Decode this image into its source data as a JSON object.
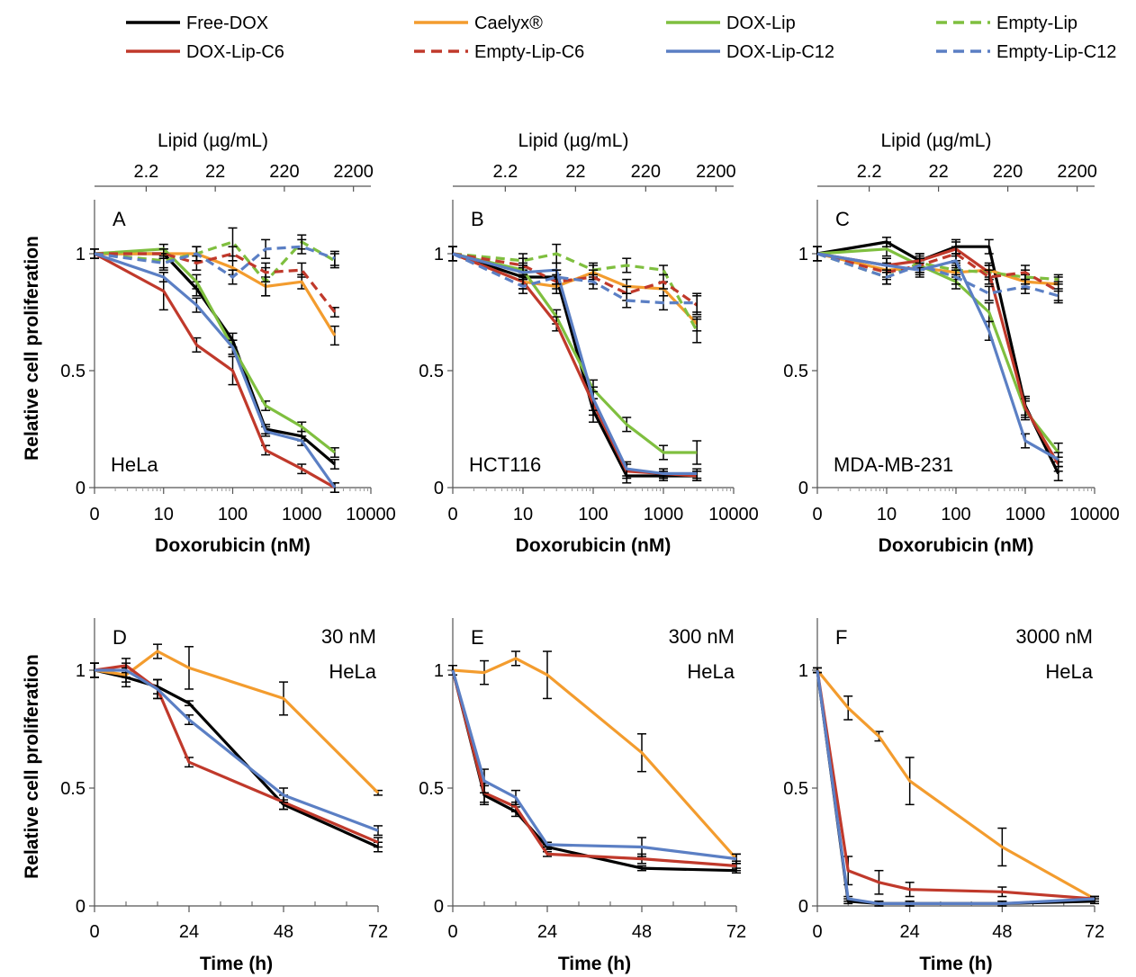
{
  "legend": [
    {
      "label": "Free-DOX",
      "color": "#000000",
      "dash": false
    },
    {
      "label": "Caelyx®",
      "color": "#F39C2E",
      "dash": false
    },
    {
      "label": "DOX-Lip",
      "color": "#7FBF3F",
      "dash": false
    },
    {
      "label": "Empty-Lip",
      "color": "#7FBF3F",
      "dash": true
    },
    {
      "label": "DOX-Lip-C6",
      "color": "#C0392B",
      "dash": false
    },
    {
      "label": "Empty-Lip-C6",
      "color": "#C0392B",
      "dash": true
    },
    {
      "label": "DOX-Lip-C12",
      "color": "#5B7FC4",
      "dash": false
    },
    {
      "label": "Empty-Lip-C12",
      "color": "#5B7FC4",
      "dash": true
    }
  ],
  "chart_data": [
    {
      "panel": "A",
      "type": "line",
      "cell_line": "HeLa",
      "xlabel": "Doxorubicin (nM)",
      "top_xlabel": "Lipid (µg/mL)",
      "ylabel": "Relative cell proliferation",
      "x_scale": "log-with-zero",
      "xlim": [
        0,
        10000
      ],
      "ylim": [
        0,
        1.25
      ],
      "x_ticks": [
        "0",
        "10",
        "100",
        "1000",
        "10000"
      ],
      "top_ticks": [
        "2.2",
        "22",
        "220",
        "2200"
      ],
      "y_ticks": [
        "0",
        "0.5",
        "1"
      ],
      "x": [
        0,
        10,
        30,
        100,
        300,
        1000,
        3000
      ],
      "series": [
        {
          "name": "Free-DOX",
          "values": [
            1,
            1,
            0.85,
            0.63,
            0.25,
            0.22,
            0.1
          ],
          "err": [
            0.02,
            0.02,
            0.03,
            0.03,
            0.02,
            0.02,
            0.02
          ]
        },
        {
          "name": "Caelyx®",
          "values": [
            1,
            1,
            1,
            0.94,
            0.86,
            0.88,
            0.65
          ],
          "err": [
            0.02,
            0.02,
            0.03,
            0.03,
            0.04,
            0.03,
            0.04
          ]
        },
        {
          "name": "DOX-Lip",
          "values": [
            1,
            1.02,
            0.88,
            0.6,
            0.35,
            0.26,
            0.15
          ],
          "err": [
            0.02,
            0.02,
            0.03,
            0.03,
            0.02,
            0.02,
            0.02
          ]
        },
        {
          "name": "Empty-Lip",
          "values": [
            1,
            0.97,
            1,
            1.05,
            0.88,
            1.05,
            0.97
          ],
          "err": [
            0.02,
            0.03,
            0.03,
            0.06,
            0.06,
            0.03,
            0.03
          ]
        },
        {
          "name": "DOX-Lip-C6",
          "values": [
            1,
            0.84,
            0.61,
            0.5,
            0.16,
            0.08,
            0
          ],
          "err": [
            0.02,
            0.08,
            0.03,
            0.06,
            0.02,
            0.02,
            0.02
          ]
        },
        {
          "name": "Empty-Lip-C6",
          "values": [
            1,
            1,
            0.96,
            1,
            0.92,
            0.93,
            0.75
          ],
          "err": [
            0.02,
            0.02,
            0.03,
            0.03,
            0.04,
            0.03,
            0.02
          ]
        },
        {
          "name": "DOX-Lip-C12",
          "values": [
            1,
            0.9,
            0.78,
            0.6,
            0.24,
            0.2,
            0
          ],
          "err": [
            0.02,
            0.02,
            0.03,
            0.03,
            0.02,
            0.02,
            0.02
          ]
        },
        {
          "name": "Empty-Lip-C12",
          "values": [
            1,
            0.96,
            1,
            0.9,
            1.02,
            1.03,
            0.98
          ],
          "err": [
            0.02,
            0.03,
            0.03,
            0.03,
            0.04,
            0.03,
            0.03
          ]
        }
      ]
    },
    {
      "panel": "B",
      "type": "line",
      "cell_line": "HCT116",
      "xlabel": "Doxorubicin (nM)",
      "top_xlabel": "Lipid (µg/mL)",
      "ylabel": "",
      "x_scale": "log-with-zero",
      "xlim": [
        0,
        10000
      ],
      "ylim": [
        0,
        1.25
      ],
      "x_ticks": [
        "0",
        "10",
        "100",
        "1000",
        "10000"
      ],
      "top_ticks": [
        "2.2",
        "22",
        "220",
        "2200"
      ],
      "y_ticks": [
        "0",
        "0.5",
        "1"
      ],
      "x": [
        0,
        10,
        30,
        100,
        300,
        1000,
        3000
      ],
      "series": [
        {
          "name": "Free-DOX",
          "values": [
            1,
            0.9,
            0.9,
            0.33,
            0.05,
            0.05,
            0.05
          ],
          "err": [
            0.03,
            0.03,
            0.03,
            0.05,
            0.03,
            0.02,
            0.02
          ]
        },
        {
          "name": "Caelyx®",
          "values": [
            1,
            0.88,
            0.86,
            0.92,
            0.86,
            0.85,
            0.7
          ],
          "err": [
            0.03,
            0.03,
            0.03,
            0.03,
            0.03,
            0.03,
            0.03
          ]
        },
        {
          "name": "DOX-Lip",
          "values": [
            1,
            0.93,
            0.73,
            0.42,
            0.27,
            0.15,
            0.15
          ],
          "err": [
            0.03,
            0.03,
            0.03,
            0.04,
            0.03,
            0.03,
            0.05
          ]
        },
        {
          "name": "Empty-Lip",
          "values": [
            1,
            0.97,
            1,
            0.93,
            0.95,
            0.93,
            0.67
          ],
          "err": [
            0.03,
            0.03,
            0.04,
            0.03,
            0.03,
            0.02,
            0.05
          ]
        },
        {
          "name": "DOX-Lip-C6",
          "values": [
            1,
            0.88,
            0.7,
            0.36,
            0.07,
            0.06,
            0.05
          ],
          "err": [
            0.03,
            0.03,
            0.03,
            0.05,
            0.03,
            0.02,
            0.02
          ]
        },
        {
          "name": "Empty-Lip-C6",
          "values": [
            1,
            0.95,
            0.88,
            0.9,
            0.83,
            0.88,
            0.78
          ],
          "err": [
            0.03,
            0.03,
            0.03,
            0.03,
            0.03,
            0.03,
            0.04
          ]
        },
        {
          "name": "DOX-Lip-C12",
          "values": [
            1,
            0.92,
            0.93,
            0.38,
            0.08,
            0.06,
            0.06
          ],
          "err": [
            0.03,
            0.03,
            0.03,
            0.05,
            0.03,
            0.02,
            0.02
          ]
        },
        {
          "name": "Empty-Lip-C12",
          "values": [
            1,
            0.86,
            0.9,
            0.88,
            0.8,
            0.79,
            0.79
          ],
          "err": [
            0.03,
            0.03,
            0.03,
            0.03,
            0.03,
            0.03,
            0.04
          ]
        }
      ]
    },
    {
      "panel": "C",
      "type": "line",
      "cell_line": "MDA-MB-231",
      "xlabel": "Doxorubicin (nM)",
      "top_xlabel": "Lipid (µg/mL)",
      "ylabel": "",
      "x_scale": "log-with-zero",
      "xlim": [
        0,
        10000
      ],
      "ylim": [
        0,
        1.25
      ],
      "x_ticks": [
        "0",
        "10",
        "100",
        "1000",
        "10000"
      ],
      "top_ticks": [
        "2.2",
        "22",
        "220",
        "2200"
      ],
      "y_ticks": [
        "0",
        "0.5",
        "1"
      ],
      "x": [
        0,
        10,
        30,
        100,
        300,
        1000,
        3000
      ],
      "series": [
        {
          "name": "Free-DOX",
          "values": [
            1,
            1.05,
            0.97,
            1.03,
            1.03,
            0.35,
            0.06
          ],
          "err": [
            0.03,
            0.02,
            0.03,
            0.03,
            0.03,
            0.04,
            0.03
          ]
        },
        {
          "name": "Caelyx®",
          "values": [
            1,
            0.93,
            0.94,
            0.92,
            0.93,
            0.88,
            0.87
          ],
          "err": [
            0.03,
            0.03,
            0.03,
            0.03,
            0.03,
            0.03,
            0.03
          ]
        },
        {
          "name": "DOX-Lip",
          "values": [
            1,
            1.02,
            0.95,
            0.88,
            0.75,
            0.33,
            0.15
          ],
          "err": [
            0.03,
            0.03,
            0.03,
            0.03,
            0.04,
            0.04,
            0.04
          ]
        },
        {
          "name": "Empty-Lip",
          "values": [
            1,
            0.9,
            0.96,
            0.93,
            0.92,
            0.9,
            0.89
          ],
          "err": [
            0.03,
            0.03,
            0.03,
            0.03,
            0.03,
            0.03,
            0.02
          ]
        },
        {
          "name": "DOX-Lip-C6",
          "values": [
            1,
            0.95,
            0.97,
            1.02,
            0.92,
            0.34,
            0.1
          ],
          "err": [
            0.03,
            0.03,
            0.03,
            0.03,
            0.03,
            0.04,
            0.03
          ]
        },
        {
          "name": "Empty-Lip-C6",
          "values": [
            1,
            0.92,
            0.95,
            1,
            0.9,
            0.92,
            0.84
          ],
          "err": [
            0.03,
            0.03,
            0.03,
            0.03,
            0.03,
            0.03,
            0.04
          ]
        },
        {
          "name": "DOX-Lip-C12",
          "values": [
            1,
            0.95,
            0.93,
            0.97,
            0.67,
            0.2,
            0.12
          ],
          "err": [
            0.03,
            0.03,
            0.03,
            0.03,
            0.04,
            0.03,
            0.03
          ]
        },
        {
          "name": "Empty-Lip-C12",
          "values": [
            1,
            0.9,
            0.95,
            0.9,
            0.83,
            0.86,
            0.82
          ],
          "err": [
            0.03,
            0.03,
            0.03,
            0.03,
            0.03,
            0.03,
            0.03
          ]
        }
      ]
    },
    {
      "panel": "D",
      "type": "line",
      "dose": "30 nM",
      "cell_line": "HeLa",
      "xlabel": "Time (h)",
      "ylabel": "Relative cell proliferation",
      "x_scale": "linear",
      "xlim": [
        0,
        72
      ],
      "ylim": [
        0,
        1.25
      ],
      "x_ticks": [
        "0",
        "24",
        "48",
        "72"
      ],
      "y_ticks": [
        "0",
        "0.5",
        "1"
      ],
      "x": [
        0,
        8,
        16,
        24,
        48,
        72
      ],
      "series": [
        {
          "name": "Free-DOX",
          "values": [
            1,
            0.97,
            0.93,
            0.86,
            0.43,
            0.25
          ],
          "err": [
            0.03,
            0.04,
            0.03,
            0.01,
            0.02,
            0.02
          ]
        },
        {
          "name": "Caelyx®",
          "values": [
            1,
            0.98,
            1.08,
            1.01,
            0.88,
            0.48
          ],
          "err": [
            0.03,
            0.03,
            0.03,
            0.09,
            0.07,
            0.01
          ]
        },
        {
          "name": "DOX-Lip-C6",
          "values": [
            1,
            1.02,
            0.92,
            0.61,
            0.44,
            0.27
          ],
          "err": [
            0.03,
            0.03,
            0.04,
            0.02,
            0.03,
            0.02
          ]
        },
        {
          "name": "DOX-Lip-C12",
          "values": [
            1,
            1,
            0.92,
            0.79,
            0.47,
            0.32
          ],
          "err": [
            0.03,
            0.03,
            0.04,
            0.02,
            0.03,
            0.02
          ]
        }
      ]
    },
    {
      "panel": "E",
      "type": "line",
      "dose": "300 nM",
      "cell_line": "HeLa",
      "xlabel": "Time (h)",
      "ylabel": "",
      "x_scale": "linear",
      "xlim": [
        0,
        72
      ],
      "ylim": [
        0,
        1.25
      ],
      "x_ticks": [
        "0",
        "24",
        "48",
        "72"
      ],
      "y_ticks": [
        "0",
        "0.5",
        "1"
      ],
      "x": [
        0,
        8,
        16,
        24,
        48,
        72
      ],
      "series": [
        {
          "name": "Free-DOX",
          "values": [
            1,
            0.47,
            0.4,
            0.25,
            0.16,
            0.15
          ],
          "err": [
            0.02,
            0.04,
            0.02,
            0.01,
            0.01,
            0.01
          ]
        },
        {
          "name": "Caelyx®",
          "values": [
            1,
            0.99,
            1.05,
            0.98,
            0.65,
            0.2
          ],
          "err": [
            0.02,
            0.05,
            0.03,
            0.1,
            0.08,
            0.02
          ]
        },
        {
          "name": "DOX-Lip-C6",
          "values": [
            1,
            0.48,
            0.42,
            0.22,
            0.2,
            0.17
          ],
          "err": [
            0.02,
            0.04,
            0.02,
            0.01,
            0.02,
            0.02
          ]
        },
        {
          "name": "DOX-Lip-C12",
          "values": [
            1,
            0.53,
            0.46,
            0.26,
            0.25,
            0.2
          ],
          "err": [
            0.02,
            0.05,
            0.03,
            0.01,
            0.04,
            0.02
          ]
        }
      ]
    },
    {
      "panel": "F",
      "type": "line",
      "dose": "3000 nM",
      "cell_line": "HeLa",
      "xlabel": "Time (h)",
      "ylabel": "",
      "x_scale": "linear",
      "xlim": [
        0,
        72
      ],
      "ylim": [
        0,
        1.25
      ],
      "x_ticks": [
        "0",
        "24",
        "48",
        "72"
      ],
      "y_ticks": [
        "0",
        "0.5",
        "1"
      ],
      "x": [
        0,
        8,
        16,
        24,
        48,
        72
      ],
      "series": [
        {
          "name": "Free-DOX",
          "values": [
            1,
            0.02,
            0.01,
            0.01,
            0.01,
            0.02
          ],
          "err": [
            0.01,
            0.01,
            0.01,
            0.01,
            0.01,
            0.01
          ]
        },
        {
          "name": "Caelyx®",
          "values": [
            1,
            0.84,
            0.72,
            0.53,
            0.25,
            0.03
          ],
          "err": [
            0.01,
            0.05,
            0.02,
            0.1,
            0.08,
            0.01
          ]
        },
        {
          "name": "DOX-Lip-C6",
          "values": [
            1,
            0.15,
            0.1,
            0.07,
            0.06,
            0.03
          ],
          "err": [
            0.01,
            0.06,
            0.05,
            0.03,
            0.02,
            0.01
          ]
        },
        {
          "name": "DOX-Lip-C12",
          "values": [
            1,
            0.03,
            0.01,
            0.01,
            0.01,
            0.03
          ],
          "err": [
            0.01,
            0.01,
            0.01,
            0.01,
            0.01,
            0.01
          ]
        }
      ]
    }
  ]
}
